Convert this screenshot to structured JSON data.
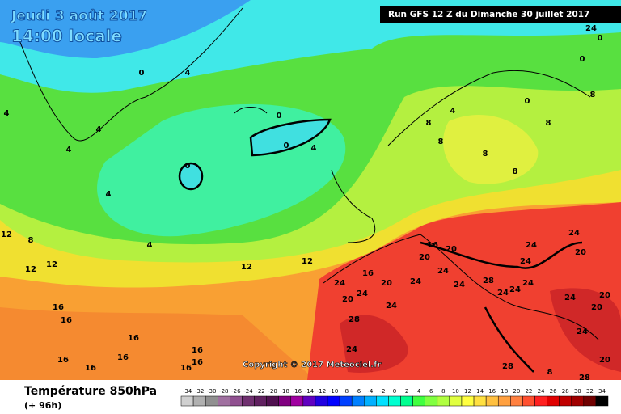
{
  "header": {
    "date": "Jeudi 3 août 2017",
    "time": "14:00 locale",
    "run": "Run GFS 12 Z du Dimanche 30 juillet 2017"
  },
  "copyright": "Copyright © 2017 Meteociel.fr",
  "footer": {
    "title": "Température 850hPa",
    "lead": "(+ 96h)"
  },
  "scale": {
    "values": [
      -34,
      -32,
      -30,
      -28,
      -26,
      -24,
      -22,
      -20,
      -18,
      -16,
      -14,
      -12,
      -10,
      -8,
      -6,
      -4,
      -2,
      0,
      2,
      4,
      6,
      8,
      10,
      12,
      14,
      16,
      18,
      20,
      22,
      24,
      26,
      28,
      30,
      32,
      34
    ],
    "colors": [
      "#d0d0d0",
      "#b0b0b0",
      "#909090",
      "#a070a0",
      "#905090",
      "#703070",
      "#602060",
      "#501050",
      "#800080",
      "#a000a0",
      "#6000c0",
      "#2000e0",
      "#0000ff",
      "#0040ff",
      "#0080ff",
      "#00b0ff",
      "#00e0ff",
      "#00ffd0",
      "#00ff90",
      "#40ff40",
      "#80ff40",
      "#b0ff40",
      "#e0ff40",
      "#ffff40",
      "#ffe040",
      "#ffc040",
      "#ffa040",
      "#ff8040",
      "#ff5030",
      "#ff2020",
      "#e00000",
      "#c00000",
      "#a00000",
      "#700000",
      "#000000"
    ]
  },
  "isotherm_labels": [
    0,
    4,
    4,
    4,
    4,
    0,
    0,
    4,
    0,
    4,
    4,
    12,
    8,
    12,
    12,
    12,
    12,
    16,
    16,
    16,
    16,
    16,
    16,
    16,
    16,
    16,
    16,
    16,
    20,
    24,
    24,
    20,
    20,
    24,
    24,
    24,
    20,
    24,
    24,
    28,
    24,
    20,
    24,
    24,
    24,
    24,
    24,
    20,
    20,
    28,
    24,
    24,
    28,
    20,
    28,
    24,
    0,
    0,
    0,
    8,
    8,
    8,
    8,
    4,
    8,
    8,
    8
  ]
}
